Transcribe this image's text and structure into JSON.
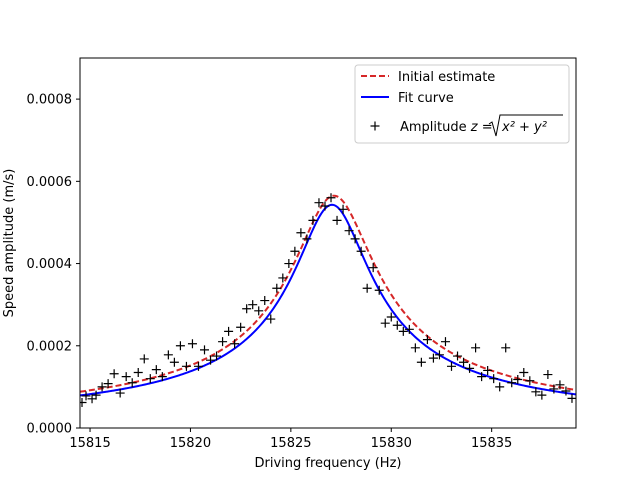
{
  "chart_data": {
    "type": "line",
    "title": "",
    "xlabel": "Driving frequency (Hz)",
    "ylabel": "Speed amplitude (m/s)",
    "xlim": [
      15814.5,
      15839.2
    ],
    "ylim": [
      0,
      0.0009
    ],
    "xticks": [
      15815,
      15820,
      15825,
      15830,
      15835
    ],
    "yticks": [
      0.0,
      0.0002,
      0.0004,
      0.0006,
      0.0008
    ],
    "ytick_labels": [
      "0.0000",
      "0.0002",
      "0.0004",
      "0.0006",
      "0.0008"
    ],
    "grid": false,
    "legend": {
      "placement": "top-right",
      "entries": [
        "Initial estimate",
        "Fit curve",
        "Amplitude"
      ],
      "formula_prefix": "z = ",
      "formula_radicand": "x² + y²"
    },
    "colors": {
      "initial": "#d62728",
      "fit": "#0000ff",
      "points": "#000000"
    },
    "initial_model": {
      "f0": 15827.15,
      "peak": 0.000565,
      "half_width": 2.0
    },
    "fit_model": {
      "f0": 15827.05,
      "peak": 0.000543,
      "half_width": 1.85
    },
    "series": [
      {
        "name": "Amplitude",
        "x": [
          15814.6,
          15814.8,
          15815.1,
          15815.3,
          15815.6,
          15815.9,
          15816.2,
          15816.5,
          15816.8,
          15817.1,
          15817.4,
          15817.7,
          15818.0,
          15818.3,
          15818.6,
          15818.9,
          15819.2,
          15819.5,
          15819.8,
          15820.1,
          15820.4,
          15820.7,
          15821.0,
          15821.3,
          15821.6,
          15821.9,
          15822.2,
          15822.5,
          15822.8,
          15823.1,
          15823.4,
          15823.7,
          15824.0,
          15824.3,
          15824.6,
          15824.9,
          15825.2,
          15825.5,
          15825.8,
          15826.1,
          15826.4,
          15826.7,
          15827.0,
          15827.3,
          15827.6,
          15827.9,
          15828.2,
          15828.5,
          15828.8,
          15829.1,
          15829.4,
          15829.7,
          15830.0,
          15830.3,
          15830.6,
          15830.9,
          15831.2,
          15831.5,
          15831.8,
          15832.1,
          15832.4,
          15832.7,
          15833.0,
          15833.3,
          15833.6,
          15833.9,
          15834.2,
          15834.5,
          15834.8,
          15835.1,
          15835.4,
          15835.7,
          15836.0,
          15836.3,
          15836.6,
          15836.9,
          15837.2,
          15837.5,
          15837.8,
          15838.1,
          15838.4,
          15838.7,
          15839.0
        ],
        "y": [
          6.2e-05,
          7.8e-05,
          7.1e-05,
          8e-05,
          0.0001,
          0.000108,
          0.000132,
          8.5e-05,
          0.000125,
          0.00011,
          0.000135,
          0.000168,
          0.00012,
          0.000142,
          0.000125,
          0.000178,
          0.00016,
          0.0002,
          0.00015,
          0.000205,
          0.00015,
          0.00019,
          0.000165,
          0.000175,
          0.00021,
          0.000235,
          0.000205,
          0.000245,
          0.00029,
          0.0003,
          0.000285,
          0.00031,
          0.000265,
          0.00034,
          0.000365,
          0.0004,
          0.00043,
          0.000475,
          0.00046,
          0.000505,
          0.000548,
          0.00054,
          0.00056,
          0.000505,
          0.000532,
          0.00048,
          0.00046,
          0.00043,
          0.00034,
          0.00039,
          0.000335,
          0.000255,
          0.00027,
          0.00025,
          0.000235,
          0.00024,
          0.000195,
          0.00016,
          0.000215,
          0.00017,
          0.000178,
          0.00021,
          0.00015,
          0.000175,
          0.00016,
          0.000145,
          0.000195,
          0.000125,
          0.00014,
          0.00012,
          0.0001,
          0.000195,
          0.00011,
          0.000118,
          0.000135,
          0.000115,
          8.8e-05,
          8e-05,
          0.00013,
          9.5e-05,
          0.000105,
          9e-05,
          7.2e-05
        ]
      }
    ]
  }
}
